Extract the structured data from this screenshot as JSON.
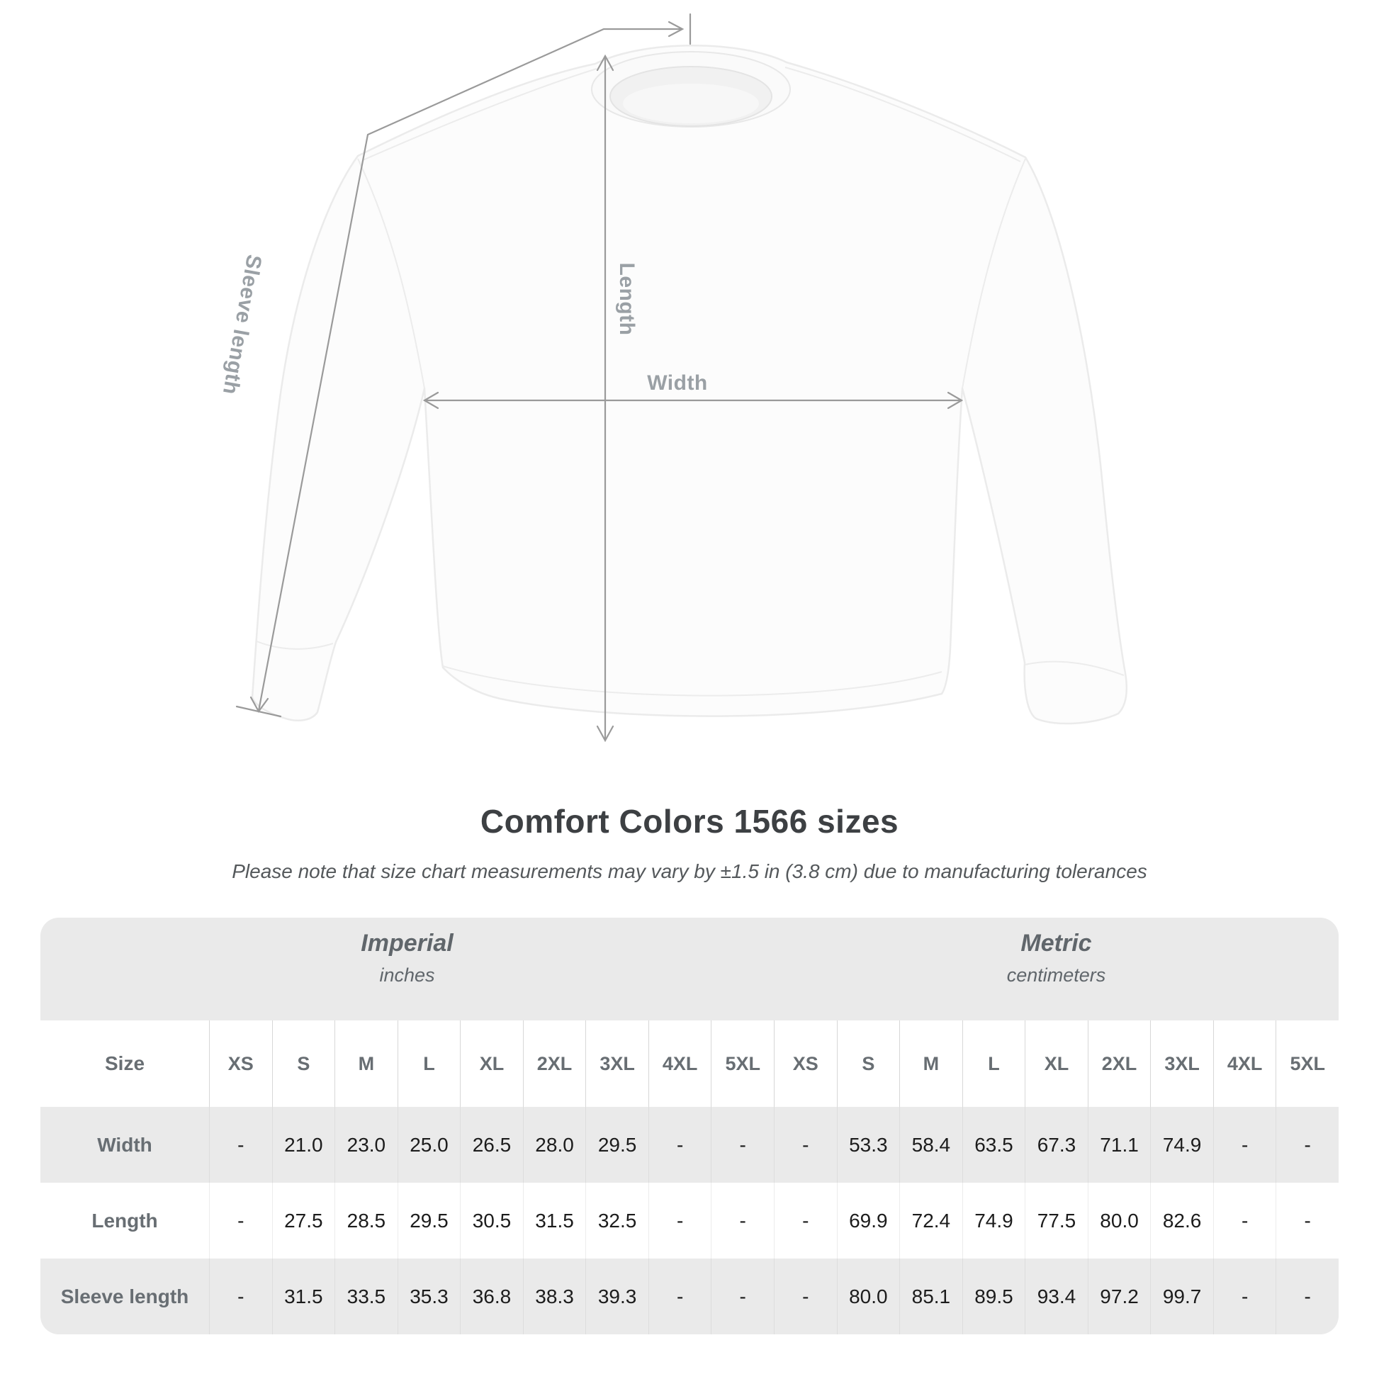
{
  "figure": {
    "length_label": "Length",
    "width_label": "Width",
    "sleeve_label": "Sleeve length"
  },
  "heading": {
    "title": "Comfort Colors 1566 sizes",
    "subtitle": "Please note that size chart measurements may vary by ±1.5 in (3.8 cm) due to manufacturing tolerances"
  },
  "table": {
    "corner_label": "Size",
    "groups": [
      {
        "name": "Imperial",
        "unit": "inches"
      },
      {
        "name": "Metric",
        "unit": "centimeters"
      }
    ],
    "sizes": [
      "XS",
      "S",
      "M",
      "L",
      "XL",
      "2XL",
      "3XL",
      "4XL",
      "5XL"
    ],
    "rows": [
      {
        "label": "Width",
        "imperial": [
          "-",
          "21.0",
          "23.0",
          "25.0",
          "26.5",
          "28.0",
          "29.5",
          "-",
          "-"
        ],
        "metric": [
          "-",
          "53.3",
          "58.4",
          "63.5",
          "67.3",
          "71.1",
          "74.9",
          "-",
          "-"
        ]
      },
      {
        "label": "Length",
        "imperial": [
          "-",
          "27.5",
          "28.5",
          "29.5",
          "30.5",
          "31.5",
          "32.5",
          "-",
          "-"
        ],
        "metric": [
          "-",
          "69.9",
          "72.4",
          "74.9",
          "77.5",
          "80.0",
          "82.6",
          "-",
          "-"
        ]
      },
      {
        "label": "Sleeve length",
        "imperial": [
          "-",
          "31.5",
          "33.5",
          "35.3",
          "36.8",
          "38.3",
          "39.3",
          "-",
          "-"
        ],
        "metric": [
          "-",
          "80.0",
          "85.1",
          "89.5",
          "93.4",
          "97.2",
          "99.7",
          "-",
          "-"
        ]
      }
    ]
  },
  "colors": {
    "measure_line": "#9a9a9a",
    "measure_label": "#9aa0a5",
    "table_band_gray": "#eaeaea",
    "header_text": "#686e73",
    "value_text": "#1c1c1c",
    "title_text": "#3d4043"
  },
  "chart_data": {
    "type": "table",
    "title": "Comfort Colors 1566 sizes",
    "note": "Measurements may vary by ±1.5 in (3.8 cm)",
    "columns": [
      "Size",
      "XS",
      "S",
      "M",
      "L",
      "XL",
      "2XL",
      "3XL",
      "4XL",
      "5XL"
    ],
    "units": [
      "inches",
      "centimeters"
    ],
    "rows_imperial": [
      [
        "Width",
        null,
        21.0,
        23.0,
        25.0,
        26.5,
        28.0,
        29.5,
        null,
        null
      ],
      [
        "Length",
        null,
        27.5,
        28.5,
        29.5,
        30.5,
        31.5,
        32.5,
        null,
        null
      ],
      [
        "Sleeve length",
        null,
        31.5,
        33.5,
        35.3,
        36.8,
        38.3,
        39.3,
        null,
        null
      ]
    ],
    "rows_metric": [
      [
        "Width",
        null,
        53.3,
        58.4,
        63.5,
        67.3,
        71.1,
        74.9,
        null,
        null
      ],
      [
        "Length",
        null,
        69.9,
        72.4,
        74.9,
        77.5,
        80.0,
        82.6,
        null,
        null
      ],
      [
        "Sleeve length",
        null,
        80.0,
        85.1,
        89.5,
        93.4,
        97.2,
        99.7,
        null,
        null
      ]
    ]
  }
}
